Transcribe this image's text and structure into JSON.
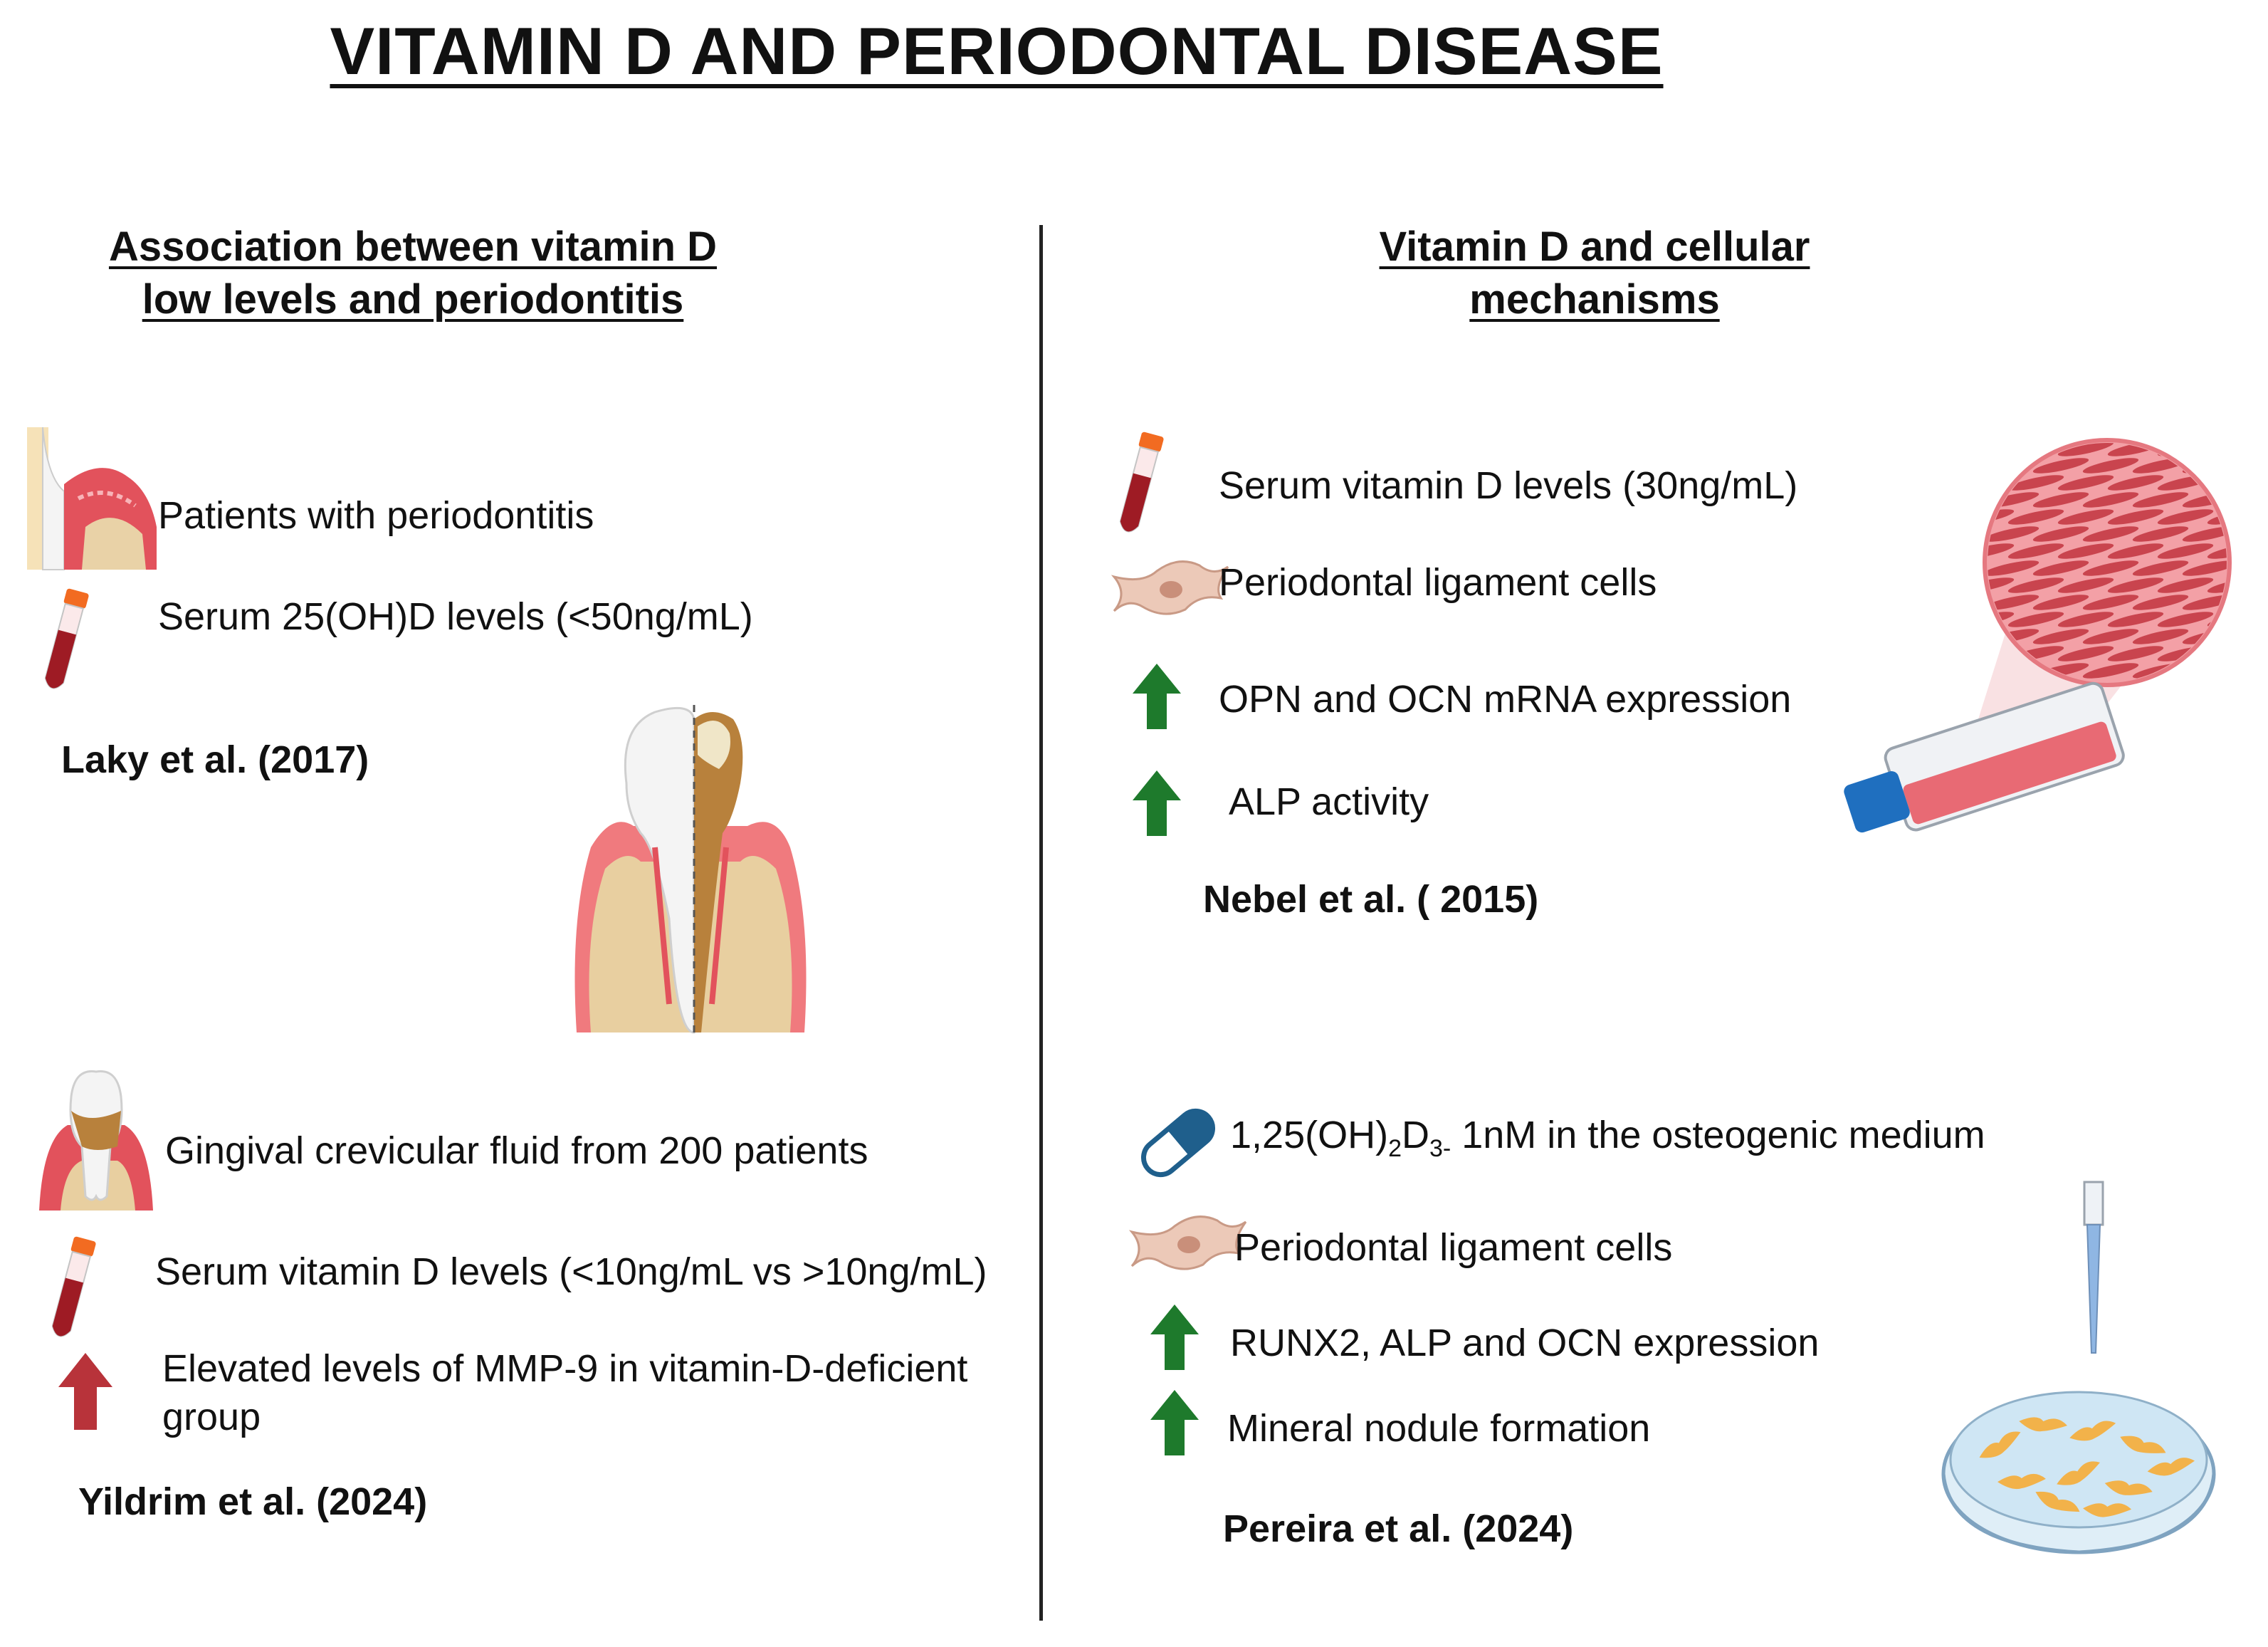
{
  "title": "VITAMIN D AND PERIODONTAL DISEASE",
  "left": {
    "heading_line1": "Association between vitamin D",
    "heading_line2": "low levels and periodontitis",
    "study1": {
      "items": [
        {
          "icon": "periodontitis-gum-icon",
          "text": "Patients with periodontitis"
        },
        {
          "icon": "blood-tube-icon",
          "text": "Serum 25(OH)D levels (<50ng/mL)"
        }
      ],
      "citation": "Laky et al. (2017)"
    },
    "study2": {
      "items": [
        {
          "icon": "damaged-tooth-icon",
          "text": "Gingival crevicular fluid from 200 patients"
        },
        {
          "icon": "blood-tube-icon",
          "text": "Serum vitamin D levels (<10ng/mL vs >10ng/mL)"
        },
        {
          "icon": "red-up-arrow-icon",
          "text_line1": "Elevated levels of MMP-9 in vitamin-D-deficient",
          "text_line2": "group"
        }
      ],
      "citation": "Yildrim et al. (2024)"
    }
  },
  "right": {
    "heading_line1": "Vitamin D and cellular",
    "heading_line2": "mechanisms",
    "study1": {
      "items": [
        {
          "icon": "blood-tube-icon",
          "text": "Serum vitamin D levels (30ng/mL)"
        },
        {
          "icon": "ligament-cell-icon",
          "text": "Periodontal ligament cells"
        },
        {
          "icon": "green-up-arrow-icon",
          "text": "OPN and OCN mRNA expression"
        },
        {
          "icon": "green-up-arrow-icon",
          "text": "ALP activity"
        }
      ],
      "citation": "Nebel et al. ( 2015)"
    },
    "study2": {
      "items": [
        {
          "icon": "capsule-icon",
          "text_prefix": "1,25(OH)",
          "sub1": "2",
          "mid": "D",
          "sub2": "3-",
          "text_suffix": " 1nM in the osteogenic medium"
        },
        {
          "icon": "ligament-cell-icon",
          "text": "Periodontal ligament cells"
        },
        {
          "icon": "green-up-arrow-icon",
          "text": "RUNX2, ALP and OCN expression"
        },
        {
          "icon": "green-up-arrow-icon",
          "text": "Mineral nodule formation"
        }
      ],
      "citation": "Pereira et al. (2024)"
    }
  },
  "colors": {
    "gum": "#e2525c",
    "bone": "#e8cfa0",
    "arrow_green": "#1e7a2c",
    "arrow_red": "#b8333a",
    "cap_blue": "#1f6fbf",
    "culture_pink": "#e86a74",
    "cell_tan": "#e9c6b6"
  }
}
